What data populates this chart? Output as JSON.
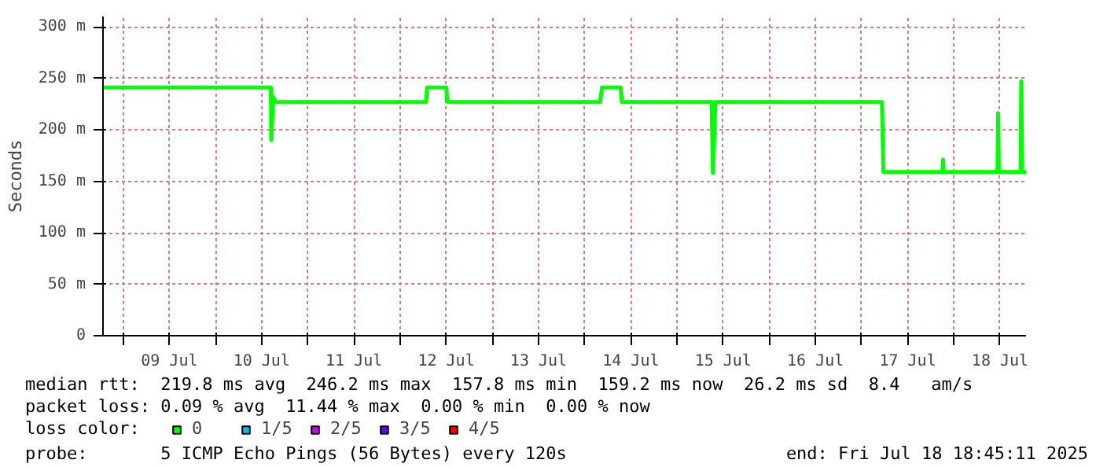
{
  "chart_data": {
    "type": "line",
    "ylabel": "Seconds",
    "xlim": [
      "2025-07-08T18:45",
      "2025-07-18T18:45"
    ],
    "ylim": [
      0,
      310
    ],
    "yticks": [
      {
        "value": 0,
        "label": "0"
      },
      {
        "value": 50,
        "label": "50 m"
      },
      {
        "value": 100,
        "label": "100 m"
      },
      {
        "value": 150,
        "label": "150 m"
      },
      {
        "value": 200,
        "label": "200 m"
      },
      {
        "value": 250,
        "label": "250 m"
      },
      {
        "value": 300,
        "label": "300 m"
      }
    ],
    "xticks": [
      {
        "value": "2025-07-09T00:00",
        "label": null
      },
      {
        "value": "2025-07-09T12:00",
        "label": "09 Jul"
      },
      {
        "value": "2025-07-10T00:00",
        "label": null
      },
      {
        "value": "2025-07-10T12:00",
        "label": "10 Jul"
      },
      {
        "value": "2025-07-11T00:00",
        "label": null
      },
      {
        "value": "2025-07-11T12:00",
        "label": "11 Jul"
      },
      {
        "value": "2025-07-12T00:00",
        "label": null
      },
      {
        "value": "2025-07-12T12:00",
        "label": "12 Jul"
      },
      {
        "value": "2025-07-13T00:00",
        "label": null
      },
      {
        "value": "2025-07-13T12:00",
        "label": "13 Jul"
      },
      {
        "value": "2025-07-14T00:00",
        "label": null
      },
      {
        "value": "2025-07-14T12:00",
        "label": "14 Jul"
      },
      {
        "value": "2025-07-15T00:00",
        "label": null
      },
      {
        "value": "2025-07-15T12:00",
        "label": "15 Jul"
      },
      {
        "value": "2025-07-16T00:00",
        "label": null
      },
      {
        "value": "2025-07-16T12:00",
        "label": "16 Jul"
      },
      {
        "value": "2025-07-17T00:00",
        "label": null
      },
      {
        "value": "2025-07-17T12:00",
        "label": "17 Jul"
      },
      {
        "value": "2025-07-18T00:00",
        "label": null
      },
      {
        "value": "2025-07-18T12:00",
        "label": "18 Jul"
      }
    ],
    "grid": true,
    "legend": "bottom",
    "legend_title": "loss color:",
    "series": [
      {
        "name": "0",
        "color": "#00ff00",
        "x": [
          "2025-07-08T18:45",
          "2025-07-10T14:24",
          "2025-07-10T14:30",
          "2025-07-10T15:00",
          "2025-07-10T15:30",
          "2025-07-10T16:00",
          "2025-07-12T06:45",
          "2025-07-12T07:00",
          "2025-07-12T12:00",
          "2025-07-12T12:15",
          "2025-07-14T04:00",
          "2025-07-14T04:30",
          "2025-07-14T09:20",
          "2025-07-14T09:40",
          "2025-07-15T09:00",
          "2025-07-15T09:20",
          "2025-07-15T10:00",
          "2025-07-17T05:17",
          "2025-07-17T05:40",
          "2025-07-17T21:00",
          "2025-07-17T21:10",
          "2025-07-17T21:20",
          "2025-07-18T11:20",
          "2025-07-18T11:30",
          "2025-07-18T11:40",
          "2025-07-18T17:20",
          "2025-07-18T17:30",
          "2025-07-18T17:45",
          "2025-07-18T18:45"
        ],
        "values": [
          241,
          241,
          190,
          232,
          227,
          227,
          227,
          241,
          241,
          227,
          227,
          241,
          241,
          227,
          227,
          158,
          227,
          227,
          159,
          159,
          171,
          159,
          159,
          216,
          159,
          159,
          247,
          159,
          159
        ]
      },
      {
        "name": "1/5",
        "color": "#00b8ff"
      },
      {
        "name": "2/5",
        "color": "#d000ff"
      },
      {
        "name": "3/5",
        "color": "#6600ff"
      },
      {
        "name": "4/5",
        "color": "#ff0000"
      }
    ],
    "annotations": [
      "median rtt:  219.8 ms avg  246.2 ms max  157.8 ms min  159.2 ms now  26.2 ms sd  8.4   am/s",
      "packet loss: 0.09 % avg  11.44 % max  0.00 % min  0.00 % now",
      "probe:       5 ICMP Echo Pings (56 Bytes) every 120s",
      "end: Fri Jul 18 18:45:11 2025"
    ]
  }
}
